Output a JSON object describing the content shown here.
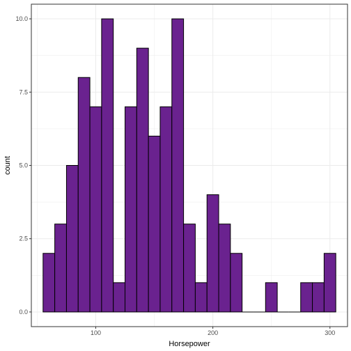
{
  "chart_data": {
    "type": "bar",
    "style": "histogram",
    "title": "",
    "xlabel": "Horsepower",
    "ylabel": "count",
    "x_ticks": [
      100,
      200,
      300
    ],
    "x_tick_labels": [
      "100",
      "200",
      "300"
    ],
    "y_ticks": [
      0,
      2.5,
      5,
      7.5,
      10
    ],
    "y_tick_labels": [
      "0.0",
      "2.5",
      "5.0",
      "7.5",
      "10.0"
    ],
    "xlim": [
      45,
      315
    ],
    "ylim": [
      -0.5,
      10.5
    ],
    "grid": true,
    "bins": [
      {
        "x0": 55,
        "x1": 65,
        "count": 2
      },
      {
        "x0": 65,
        "x1": 75,
        "count": 3
      },
      {
        "x0": 75,
        "x1": 85,
        "count": 5
      },
      {
        "x0": 85,
        "x1": 95,
        "count": 8
      },
      {
        "x0": 95,
        "x1": 105,
        "count": 7
      },
      {
        "x0": 105,
        "x1": 115,
        "count": 10
      },
      {
        "x0": 115,
        "x1": 125,
        "count": 1
      },
      {
        "x0": 125,
        "x1": 135,
        "count": 7
      },
      {
        "x0": 135,
        "x1": 145,
        "count": 9
      },
      {
        "x0": 145,
        "x1": 155,
        "count": 6
      },
      {
        "x0": 155,
        "x1": 165,
        "count": 7
      },
      {
        "x0": 165,
        "x1": 175,
        "count": 10
      },
      {
        "x0": 175,
        "x1": 185,
        "count": 3
      },
      {
        "x0": 185,
        "x1": 195,
        "count": 1
      },
      {
        "x0": 195,
        "x1": 205,
        "count": 4
      },
      {
        "x0": 205,
        "x1": 215,
        "count": 3
      },
      {
        "x0": 215,
        "x1": 225,
        "count": 2
      },
      {
        "x0": 225,
        "x1": 235,
        "count": 0
      },
      {
        "x0": 235,
        "x1": 245,
        "count": 0
      },
      {
        "x0": 245,
        "x1": 255,
        "count": 1
      },
      {
        "x0": 255,
        "x1": 265,
        "count": 0
      },
      {
        "x0": 265,
        "x1": 275,
        "count": 0
      },
      {
        "x0": 275,
        "x1": 285,
        "count": 1
      },
      {
        "x0": 285,
        "x1": 295,
        "count": 1
      },
      {
        "x0": 295,
        "x1": 305,
        "count": 2
      }
    ],
    "colors": {
      "fill": "#6a228f",
      "stroke": "#000000",
      "grid": "#ebebeb",
      "panel_border": "#333333"
    }
  }
}
